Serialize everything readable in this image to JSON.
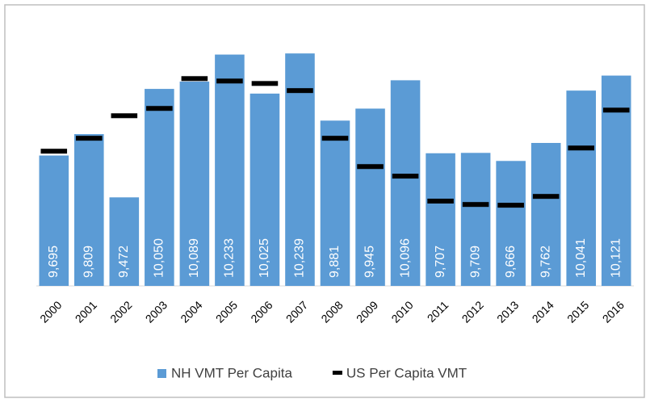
{
  "chart_data": {
    "type": "bar",
    "categories": [
      "2000",
      "2001",
      "2002",
      "2003",
      "2004",
      "2005",
      "2006",
      "2007",
      "2008",
      "2009",
      "2010",
      "2011",
      "2012",
      "2013",
      "2014",
      "2015",
      "2016"
    ],
    "series": [
      {
        "name": "NH VMT Per Capita",
        "type": "bar",
        "color": "#5b9bd5",
        "values": [
          9695,
          9809,
          9472,
          10050,
          10089,
          10233,
          10025,
          10239,
          9881,
          9945,
          10096,
          9707,
          9709,
          9666,
          9762,
          10041,
          10121
        ],
        "value_labels": [
          "9,695",
          "9,809",
          "9,472",
          "10,050",
          "10,089",
          "10,233",
          "10,025",
          "10,239",
          "9,881",
          "9,945",
          "10,096",
          "9,707",
          "9,709",
          "9,666",
          "9,762",
          "10,041",
          "10,121"
        ]
      },
      {
        "name": "US Per Capita VMT",
        "type": "marker",
        "color": "#000000",
        "values": [
          9718,
          9787,
          9907,
          9946,
          10105,
          10092,
          10079,
          10041,
          9787,
          9636,
          9585,
          9452,
          9434,
          9430,
          9477,
          9735,
          9937
        ]
      }
    ],
    "ylim": [
      9000,
      10300
    ],
    "grid": false,
    "legend": "bottom"
  }
}
